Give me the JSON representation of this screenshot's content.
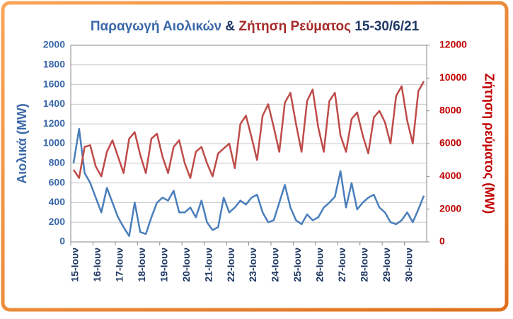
{
  "chart_data": {
    "type": "line",
    "title": [
      "Παραγωγή Αιολικών",
      "&",
      "Ζήτηση Ρεύματος",
      "15-30/6/21"
    ],
    "y_label": "Αιολικά (MW)",
    "y2_label": "Ζήτηση ρεύματος (MW)",
    "categories": [
      "15-Ιουν",
      null,
      null,
      null,
      "16-Ιουν",
      null,
      null,
      null,
      "17-Ιουν",
      null,
      null,
      null,
      "18-Ιουν",
      null,
      null,
      null,
      "19-Ιουν",
      null,
      null,
      null,
      "20-Ιουν",
      null,
      null,
      null,
      "21-Ιουν",
      null,
      null,
      null,
      "22-Ιουν",
      null,
      null,
      null,
      "23-Ιουν",
      null,
      null,
      null,
      "24-Ιουν",
      null,
      null,
      null,
      "25-Ιουν",
      null,
      null,
      null,
      "26-Ιουν",
      null,
      null,
      null,
      "27-Ιουν",
      null,
      null,
      null,
      "28-Ιουν",
      null,
      null,
      null,
      "29-Ιουν",
      null,
      null,
      null,
      "30-Ιουν",
      null,
      null,
      null
    ],
    "series": [
      {
        "name": "Αιολικά",
        "color": "#4a7ebb",
        "axis": "y",
        "values": [
          800,
          1150,
          700,
          600,
          450,
          300,
          550,
          400,
          250,
          150,
          60,
          400,
          100,
          80,
          250,
          400,
          450,
          420,
          520,
          300,
          300,
          350,
          250,
          420,
          200,
          120,
          150,
          450,
          300,
          350,
          420,
          380,
          450,
          480,
          300,
          200,
          220,
          400,
          580,
          350,
          220,
          180,
          280,
          220,
          250,
          350,
          400,
          460,
          720,
          350,
          600,
          330,
          400,
          450,
          480,
          350,
          300,
          200,
          180,
          220,
          300,
          200,
          330,
          470
        ]
      },
      {
        "name": "Ζήτηση",
        "color": "#be4b48",
        "axis": "y2",
        "values": [
          4400,
          3900,
          5800,
          5900,
          4600,
          4000,
          5500,
          6200,
          5200,
          4200,
          6300,
          6700,
          5300,
          4200,
          6300,
          6600,
          5200,
          4200,
          5800,
          6200,
          4800,
          3900,
          5500,
          5800,
          4800,
          4000,
          5400,
          5700,
          6000,
          4500,
          7200,
          7700,
          6400,
          5000,
          7700,
          8400,
          7000,
          5500,
          8500,
          9100,
          7200,
          5500,
          8600,
          9300,
          7000,
          5500,
          8600,
          9100,
          6500,
          5500,
          7500,
          7900,
          6500,
          5400,
          7600,
          8000,
          7300,
          6000,
          8900,
          9500,
          7400,
          6000,
          9200,
          9800
        ]
      }
    ],
    "ylim": [
      0,
      2000
    ],
    "yticks": [
      0,
      200,
      400,
      600,
      800,
      1000,
      1200,
      1400,
      1600,
      1800,
      2000
    ],
    "y2lim": [
      0,
      12000
    ],
    "y2ticks": [
      0,
      2000,
      4000,
      6000,
      8000,
      10000,
      12000
    ],
    "grid": true
  }
}
